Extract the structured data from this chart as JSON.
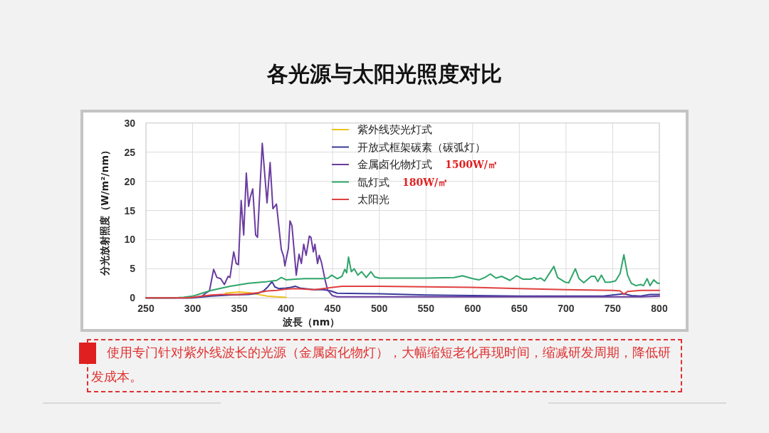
{
  "chart_data": {
    "type": "line",
    "title": "各光源与太阳光照度对比",
    "xlabel": "波長（nm）",
    "ylabel": "分光放射照度（W/m²/nm）",
    "xlim": [
      250,
      800
    ],
    "xticks": [
      250,
      300,
      350,
      400,
      450,
      500,
      550,
      600,
      650,
      700,
      750,
      800
    ],
    "ylim": [
      0,
      30
    ],
    "yticks": [
      0,
      5,
      10,
      15,
      20,
      25,
      30
    ],
    "grid": true,
    "legend": "top",
    "series": [
      {
        "name": "紫外线荧光灯式",
        "color": "#f0c020",
        "x": [
          335,
          340,
          350,
          360,
          370,
          380,
          390,
          400
        ],
        "values": [
          0.8,
          0.9,
          1.0,
          0.9,
          0.6,
          0.3,
          0.2,
          0.1
        ]
      },
      {
        "name": "开放式框架碳素（碳弧灯）",
        "color": "#3b3b9a",
        "x": [
          250,
          300,
          320,
          340,
          360,
          370,
          376,
          380,
          385,
          388,
          392,
          400,
          405,
          410,
          415,
          420,
          430,
          440,
          448,
          455,
          500,
          550,
          600,
          650,
          700,
          740,
          755,
          762,
          770,
          780,
          790,
          800
        ],
        "values": [
          0,
          0,
          0.3,
          0.5,
          0.6,
          0.8,
          1.2,
          1.8,
          2.8,
          1.9,
          1.6,
          1.7,
          1.8,
          2.0,
          1.7,
          1.6,
          1.4,
          1.4,
          1.2,
          0.8,
          0.7,
          0.5,
          0.4,
          0.3,
          0.3,
          0.3,
          0.6,
          0.7,
          0.4,
          0.3,
          0.6,
          0.6
        ]
      },
      {
        "name": "金属卤化物灯式",
        "color": "#6a3ca0",
        "x": [
          250,
          300,
          310,
          314,
          318,
          322.5,
          326,
          330,
          334,
          338,
          340,
          344,
          346.7,
          349,
          352,
          354.7,
          357.5,
          360,
          361.8,
          364.4,
          367.5,
          369.5,
          374.6,
          379.7,
          383,
          386,
          389.8,
          395,
          397.5,
          398.8,
          402.6,
          404.3,
          406.4,
          411,
          414,
          416.5,
          419,
          421.6,
          425,
          426.7,
          429.3,
          431,
          433.8,
          435.6,
          438,
          441.9,
          444.5,
          449.6,
          455,
          500,
          600,
          700,
          780,
          800
        ],
        "values": [
          0,
          0,
          0.3,
          0.8,
          1.2,
          4.9,
          3.5,
          3.3,
          2.3,
          3.7,
          3.5,
          7.9,
          5.9,
          5.7,
          16.7,
          10.8,
          21.4,
          15.7,
          17.3,
          18.7,
          10.8,
          10.4,
          26.5,
          16.3,
          23.2,
          15.3,
          16.1,
          8.3,
          7.1,
          5.5,
          8.5,
          13.2,
          12.4,
          3.9,
          7.5,
          5.9,
          9.2,
          7.3,
          10.6,
          10.4,
          7.9,
          9.2,
          5.9,
          7.3,
          6.1,
          3.1,
          1.4,
          0.4,
          0.2,
          0.2,
          0.2,
          0.2,
          0.2,
          0.3
        ]
      },
      {
        "name": "氙灯式",
        "color": "#2fa56a",
        "x": [
          250,
          280,
          290,
          300,
          310,
          320,
          340,
          360,
          380,
          390,
          395,
          400,
          410,
          420,
          440,
          445,
          449,
          455,
          460,
          463,
          465,
          467,
          470,
          473,
          477,
          481,
          486,
          491,
          495,
          500,
          550,
          580,
          589,
          600,
          607,
          613,
          619,
          625,
          631,
          640,
          647,
          654,
          662,
          666,
          669,
          673,
          677,
          681,
          687,
          691,
          699,
          703,
          710,
          714,
          719,
          727,
          731,
          734,
          738,
          742,
          747,
          753,
          758,
          762,
          766,
          770,
          775,
          780,
          783,
          787,
          790,
          794,
          798,
          800
        ],
        "values": [
          0,
          0,
          0.1,
          0.3,
          0.8,
          1.3,
          2.0,
          2.5,
          2.8,
          3.0,
          3.5,
          3.1,
          3.2,
          3.3,
          3.3,
          3.4,
          3.9,
          3.3,
          3.7,
          4.9,
          4.3,
          7.0,
          4.5,
          5.0,
          3.9,
          4.5,
          3.5,
          4.5,
          3.6,
          3.4,
          3.4,
          3.5,
          3.8,
          3.3,
          3.1,
          3.5,
          4.1,
          3.4,
          3.7,
          3.0,
          3.8,
          3.2,
          3.2,
          3.5,
          3.2,
          3.4,
          2.9,
          3.9,
          5.4,
          3.5,
          2.7,
          2.6,
          5.0,
          3.3,
          2.6,
          3.7,
          3.7,
          2.8,
          3.9,
          2.7,
          2.7,
          2.9,
          4.2,
          7.4,
          3.9,
          2.5,
          2.1,
          2.3,
          2.1,
          3.3,
          2.1,
          3.1,
          2.5,
          2.5
        ]
      },
      {
        "name": "太阳光",
        "color": "#e04040",
        "x": [
          250,
          295,
          300,
          310,
          320,
          330,
          340,
          350,
          360,
          370,
          380,
          390,
          400,
          410,
          420,
          430,
          440,
          450,
          460,
          480,
          500,
          550,
          600,
          650,
          700,
          750,
          758,
          762,
          766,
          780,
          800
        ],
        "values": [
          0,
          0,
          0.1,
          0.3,
          0.5,
          0.6,
          0.6,
          0.6,
          0.7,
          0.9,
          1.2,
          1.3,
          1.5,
          1.6,
          1.5,
          1.4,
          1.6,
          1.8,
          2.0,
          2.0,
          2.0,
          1.9,
          1.8,
          1.6,
          1.4,
          1.3,
          1.2,
          0.6,
          1.1,
          1.3,
          1.3
        ]
      }
    ],
    "annotations": [
      "1500W/㎡",
      "180W/㎡",
      "使用专门针对紫外线波长的光源（金属卤化物灯），大幅缩短老化再现时间，缩减研发周期，降低研发成本。"
    ]
  }
}
